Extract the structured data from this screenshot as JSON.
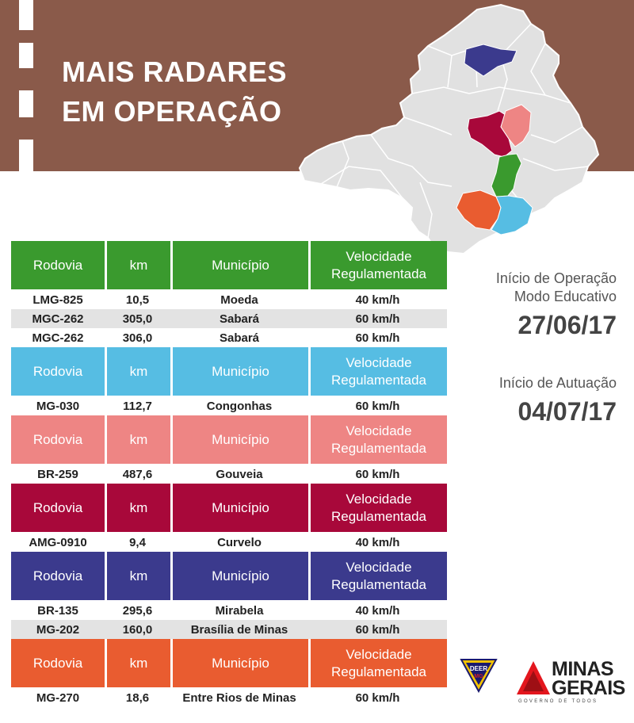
{
  "title": {
    "line1": "MAIS RADARES",
    "line2": "EM OPERAÇÃO"
  },
  "colors": {
    "banner": "#8a5a4a",
    "green": "#3a9a2e",
    "light_blue": "#56bde3",
    "salmon": "#ee8584",
    "crimson": "#a8083a",
    "navy": "#3b3a8d",
    "orange": "#e95c30"
  },
  "table_header": {
    "road": "Rodovia",
    "km": "km",
    "city": "Município",
    "speed": "Velocidade Regulamentada"
  },
  "groups": [
    {
      "color": "#3a9a2e",
      "rows": [
        {
          "road": "LMG-825",
          "km": "10,5",
          "city": "Moeda",
          "speed": "40 km/h"
        },
        {
          "road": "MGC-262",
          "km": "305,0",
          "city": "Sabará",
          "speed": "60 km/h"
        },
        {
          "road": "MGC-262",
          "km": "306,0",
          "city": "Sabará",
          "speed": "60 km/h"
        }
      ]
    },
    {
      "color": "#56bde3",
      "rows": [
        {
          "road": "MG-030",
          "km": "112,7",
          "city": "Congonhas",
          "speed": "60 km/h"
        }
      ]
    },
    {
      "color": "#ee8584",
      "rows": [
        {
          "road": "BR-259",
          "km": "487,6",
          "city": "Gouveia",
          "speed": "60 km/h"
        }
      ]
    },
    {
      "color": "#a8083a",
      "rows": [
        {
          "road": "AMG-0910",
          "km": "9,4",
          "city": "Curvelo",
          "speed": "40 km/h"
        }
      ]
    },
    {
      "color": "#3b3a8d",
      "rows": [
        {
          "road": "BR-135",
          "km": "295,6",
          "city": "Mirabela",
          "speed": "40 km/h"
        },
        {
          "road": "MG-202",
          "km": "160,0",
          "city": "Brasília de Minas",
          "speed": "60 km/h"
        }
      ]
    },
    {
      "color": "#e95c30",
      "rows": [
        {
          "road": "MG-270",
          "km": "18,6",
          "city": "Entre Rios de Minas",
          "speed": "60 km/h"
        }
      ]
    }
  ],
  "info": {
    "start_label_line1": "Início de Operação",
    "start_label_line2": "Modo Educativo",
    "start_date": "27/06/17",
    "enforce_label": "Início de Autuação",
    "enforce_date": "04/07/17"
  },
  "logos": {
    "deer_text": "DEER MG",
    "mg_line1": "MINAS",
    "mg_line2": "GERAIS",
    "mg_tagline": "GOVERNO DE TODOS"
  }
}
